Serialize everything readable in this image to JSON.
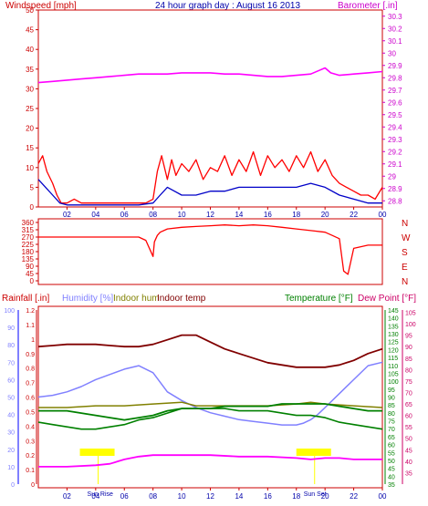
{
  "chart_data": [
    {
      "type": "line",
      "panel": "wind-barometer",
      "title": "24 hour graph day : August 16 2013",
      "left_label": "Windspeed [mph]",
      "right_label": "Barometer [.in]",
      "x_ticks": [
        "02",
        "04",
        "06",
        "08",
        "10",
        "12",
        "14",
        "16",
        "18",
        "20",
        "22",
        "00"
      ],
      "x_range": [
        0,
        24
      ],
      "y_left_ticks": [
        0,
        5,
        10,
        15,
        20,
        25,
        30,
        35,
        40,
        45,
        50
      ],
      "y_left_range": [
        0,
        50
      ],
      "y_right_ticks": [
        "28.8",
        "28.9",
        "29",
        "29.1",
        "29.2",
        "29.3",
        "29.4",
        "29.5",
        "29.6",
        "29.7",
        "29.8",
        "29.9",
        "30",
        "30.1",
        "30.2",
        "30.3"
      ],
      "y_right_range": [
        28.75,
        30.35
      ],
      "colors": {
        "gust": "#ff0000",
        "avg": "#0000c8",
        "barometer": "#ff00ff",
        "axis": "#cc0000",
        "right_axis": "#cc00cc"
      },
      "barometer": {
        "x": [
          0,
          1,
          2,
          3,
          4,
          5,
          6,
          7,
          8,
          9,
          10,
          11,
          12,
          13,
          14,
          15,
          16,
          17,
          18,
          19,
          19.6,
          20,
          20.4,
          21,
          22,
          23,
          24
        ],
        "y": [
          29.76,
          29.77,
          29.78,
          29.79,
          29.8,
          29.81,
          29.82,
          29.83,
          29.83,
          29.83,
          29.84,
          29.84,
          29.84,
          29.83,
          29.83,
          29.82,
          29.81,
          29.81,
          29.82,
          29.83,
          29.86,
          29.88,
          29.84,
          29.82,
          29.83,
          29.84,
          29.85
        ]
      },
      "gust": {
        "x": [
          0,
          0.3,
          0.6,
          1,
          1.3,
          1.6,
          2,
          2.5,
          3,
          4,
          5,
          6,
          7,
          7.5,
          8,
          8.3,
          8.6,
          9,
          9.3,
          9.6,
          10,
          10.5,
          11,
          11.5,
          12,
          12.5,
          13,
          13.5,
          14,
          14.5,
          15,
          15.5,
          16,
          16.5,
          17,
          17.5,
          18,
          18.5,
          19,
          19.5,
          20,
          20.5,
          21,
          21.5,
          22,
          22.5,
          23,
          23.5,
          24
        ],
        "y": [
          11,
          13,
          9,
          6,
          3,
          1,
          1,
          2,
          1,
          1,
          1,
          1,
          1,
          1,
          2,
          9,
          13,
          7,
          12,
          8,
          11,
          9,
          12,
          7,
          10,
          9,
          13,
          8,
          12,
          9,
          14,
          8,
          13,
          10,
          12,
          9,
          13,
          10,
          14,
          9,
          12,
          8,
          6,
          5,
          4,
          3,
          3,
          2,
          5
        ]
      },
      "avg": {
        "x": [
          0,
          0.5,
          1,
          1.5,
          2,
          3,
          4,
          5,
          6,
          7,
          8,
          8.5,
          9,
          9.5,
          10,
          11,
          12,
          13,
          14,
          15,
          16,
          17,
          18,
          19,
          20,
          21,
          22,
          23,
          24
        ],
        "y": [
          7,
          5,
          3,
          1,
          0.5,
          0.5,
          0.5,
          0.5,
          0.5,
          0.5,
          1,
          3,
          5,
          4,
          3,
          3,
          4,
          4,
          5,
          5,
          5,
          5,
          5,
          6,
          5,
          3,
          2,
          1,
          1
        ]
      }
    },
    {
      "type": "line",
      "panel": "wind-direction",
      "y_ticks": [
        "360",
        "315",
        "270",
        "225",
        "180",
        "135",
        "90",
        "45",
        "0"
      ],
      "y_range": [
        0,
        360
      ],
      "direction_labels": [
        "N",
        "W",
        "S",
        "E",
        "N"
      ],
      "x_range": [
        0,
        24
      ],
      "color": "#ff0000",
      "direction": {
        "x": [
          0,
          1,
          2,
          3,
          4,
          5,
          6,
          7,
          7.5,
          8,
          8.1,
          8.3,
          8.5,
          9,
          10,
          11,
          12,
          13,
          14,
          15,
          16,
          17,
          18,
          19,
          20,
          20.5,
          21,
          21.3,
          21.6,
          22,
          23,
          24
        ],
        "y": [
          270,
          270,
          270,
          270,
          270,
          270,
          270,
          270,
          250,
          150,
          240,
          280,
          300,
          320,
          330,
          335,
          340,
          345,
          340,
          345,
          340,
          330,
          320,
          310,
          300,
          280,
          260,
          60,
          40,
          200,
          220,
          220
        ]
      }
    },
    {
      "type": "line",
      "panel": "rain-humidity-temperature",
      "labels": {
        "rainfall": "Rainfall [.in]",
        "humidity": "Humidity [%]",
        "indoor_hum": "Indoor hum",
        "indoor_temp": "Indoor temp",
        "temperature": "Temperature [°F]",
        "dew_point": "Dew Point [°F]"
      },
      "x_ticks": [
        "02",
        "04",
        "06",
        "08",
        "10",
        "12",
        "14",
        "16",
        "18",
        "20",
        "22",
        "00"
      ],
      "sun_labels": {
        "sunrise": "Sun Rise",
        "sunset": "Sun Set"
      },
      "sun_events": {
        "rise_x": 4.3,
        "set_x": 19.4
      },
      "y_hum_ticks": [
        0,
        10,
        20,
        30,
        40,
        50,
        60,
        70,
        80,
        90,
        100
      ],
      "y_rain_ticks": [
        "0",
        "0.1",
        "0.2",
        "0.3",
        "0.4",
        "0.5",
        "0.6",
        "0.7",
        "0.8",
        "0.9",
        "1",
        "1.1",
        "1.2"
      ],
      "y_temp_ticks": [
        35,
        40,
        45,
        50,
        55,
        60,
        65,
        70,
        75,
        80,
        85,
        90,
        95,
        100,
        105,
        110,
        115,
        120,
        125,
        130,
        135,
        140,
        145
      ],
      "y_dew_ticks": [
        35,
        40,
        45,
        50,
        55,
        60,
        65,
        70,
        75,
        80,
        85,
        90,
        95,
        100,
        105
      ],
      "hum_range": [
        0,
        100
      ],
      "rain_range": [
        0,
        1.2
      ],
      "temp_range": [
        35,
        145
      ],
      "colors": {
        "rainfall": "#cc0000",
        "humidity": "#8080ff",
        "indoor_hum": "#808000",
        "indoor_temp": "#800000",
        "temperature": "#008000",
        "dew_point": "#cc0066",
        "rain_line": "#ff00ff",
        "sun_box": "#ffff00"
      },
      "humidity": {
        "x": [
          0,
          1,
          2,
          3,
          4,
          5,
          6,
          7,
          8,
          9,
          10,
          11,
          12,
          13,
          14,
          15,
          16,
          17,
          18,
          18.5,
          19,
          19.5,
          20,
          21,
          22,
          23,
          24
        ],
        "y": [
          50,
          51,
          53,
          56,
          60,
          63,
          66,
          68,
          64,
          53,
          48,
          44,
          41,
          39,
          37,
          36,
          35,
          34,
          34,
          35,
          37,
          40,
          44,
          52,
          60,
          68,
          70
        ]
      },
      "indoor_hum": {
        "x": [
          0,
          2,
          4,
          6,
          8,
          10,
          11,
          12,
          14,
          16,
          18,
          19,
          20,
          22,
          24
        ],
        "y": [
          44,
          44,
          45,
          45,
          46,
          47,
          45,
          45,
          45,
          45,
          46,
          47,
          46,
          45,
          44
        ]
      },
      "indoor_temp": {
        "x": [
          0,
          1,
          2,
          3,
          4,
          5,
          6,
          7,
          8,
          9,
          10,
          11,
          12,
          13,
          14,
          15,
          16,
          17,
          18,
          19,
          20,
          21,
          22,
          23,
          24
        ],
        "y": [
          90,
          90.5,
          91,
          91,
          91,
          90.5,
          90,
          90,
          91,
          93,
          95,
          95,
          92,
          89,
          87,
          85,
          83,
          82,
          81,
          81,
          81,
          82,
          84,
          87,
          89
        ]
      },
      "temperature": {
        "x": [
          0,
          1,
          2,
          3,
          4,
          5,
          6,
          7,
          8,
          9,
          10,
          11,
          12,
          13,
          14,
          15,
          16,
          17,
          18,
          19,
          20,
          21,
          22,
          23,
          24
        ],
        "y": [
          67,
          67,
          67,
          66,
          65,
          64,
          63,
          64,
          65,
          67,
          68,
          68,
          68,
          69,
          69,
          69,
          69,
          70,
          70,
          70,
          70,
          69,
          68,
          67,
          67
        ]
      },
      "dew_point": {
        "x": [
          0,
          1,
          2,
          3,
          4,
          5,
          6,
          7,
          8,
          9,
          10,
          11,
          12,
          13,
          14,
          15,
          16,
          17,
          18,
          19,
          20,
          21,
          22,
          23,
          24
        ],
        "y": [
          57,
          56,
          55,
          54,
          54,
          55,
          56,
          58,
          59,
          61,
          63,
          63,
          63,
          63,
          62,
          62,
          62,
          61,
          60,
          60,
          59,
          57,
          56,
          55,
          54
        ]
      },
      "rain": {
        "x": [
          0,
          2,
          4,
          5,
          6,
          7,
          8,
          10,
          12,
          14,
          16,
          18,
          19,
          20,
          21,
          22,
          24
        ],
        "y": [
          0.12,
          0.12,
          0.13,
          0.14,
          0.17,
          0.19,
          0.2,
          0.2,
          0.2,
          0.19,
          0.19,
          0.18,
          0.17,
          0.18,
          0.18,
          0.17,
          0.17
        ]
      }
    }
  ]
}
